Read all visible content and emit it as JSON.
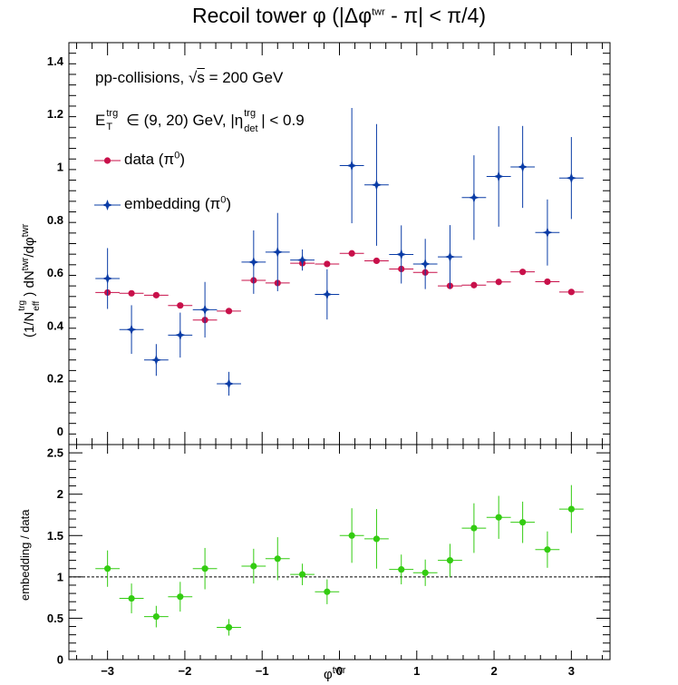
{
  "title": {
    "main": "Recoil tower φ (|Δφ",
    "sup": "twr",
    "tail": " - π| < π/4)"
  },
  "annotations": {
    "collisions": "pp-collisions, ",
    "sqrt_sym": "√",
    "sqrt_s": "s",
    "energy": " = 200 GeV",
    "et_E": "E",
    "et_sup": "trg",
    "et_sub": "T",
    "et_range": " ∈ (9, 20) GeV, |η",
    "eta_sup": "trg",
    "eta_sub": "det",
    "eta_cut": "| < 0.9"
  },
  "legend": {
    "data_label": "data (π",
    "data_sup": "0",
    "data_close": ")",
    "emb_label": "embedding (π",
    "emb_sup": "0",
    "emb_close": ")"
  },
  "axis_labels": {
    "y_top_a": "(1/N",
    "y_top_sup1": "trg",
    "y_top_sub1": "eff",
    "y_top_b": ") dN",
    "y_top_sup2": "twr",
    "y_top_c": "/dφ",
    "y_top_sup3": "twr",
    "y_bottom": "embedding / data",
    "x_main": "φ",
    "x_sup": "twr"
  },
  "chart_data": [
    {
      "type": "scatter",
      "panel": "top",
      "title": "Recoil tower φ (|Δφ^twr - π| < π/4)",
      "xlabel": "φ^twr",
      "ylabel": "(1/N^trg_eff) dN^twr/dφ^twr",
      "xlim": [
        -3.5,
        3.5
      ],
      "ylim": [
        -0.05,
        1.47
      ],
      "x_ticks": [
        -3,
        -2,
        -1,
        0,
        1,
        2,
        3
      ],
      "y_ticks": [
        0,
        0.2,
        0.4,
        0.6,
        0.8,
        1,
        1.2,
        1.4
      ],
      "y_tick_labels": [
        "0",
        "0.2",
        "0.4",
        "0.6",
        "0.8",
        "1",
        "1.2",
        "1.4"
      ],
      "bin_half_width": 0.157,
      "x": [
        -3.0,
        -2.69,
        -2.37,
        -2.06,
        -1.74,
        -1.43,
        -1.11,
        -0.8,
        -0.48,
        -0.16,
        0.16,
        0.48,
        0.8,
        1.11,
        1.43,
        1.74,
        2.06,
        2.37,
        2.69,
        3.0
      ],
      "series": [
        {
          "name": "data (π0)",
          "color": "#c8104a",
          "marker": "circle",
          "values": [
            0.525,
            0.522,
            0.515,
            0.476,
            0.421,
            0.455,
            0.571,
            0.561,
            0.636,
            0.633,
            0.673,
            0.645,
            0.614,
            0.601,
            0.55,
            0.553,
            0.565,
            0.603,
            0.566,
            0.527
          ],
          "errors": [
            0.008,
            0.008,
            0.008,
            0.008,
            0.008,
            0.008,
            0.008,
            0.008,
            0.008,
            0.008,
            0.008,
            0.008,
            0.008,
            0.008,
            0.008,
            0.008,
            0.008,
            0.008,
            0.008,
            0.008
          ]
        },
        {
          "name": "embedding (π0)",
          "color": "#0a3ca6",
          "marker": "star",
          "values": [
            0.578,
            0.385,
            0.27,
            0.364,
            0.46,
            0.18,
            0.64,
            0.678,
            0.648,
            0.518,
            1.005,
            0.932,
            0.669,
            0.633,
            0.66,
            0.884,
            0.964,
            1.0,
            0.752,
            0.958
          ],
          "errors": [
            0.115,
            0.092,
            0.06,
            0.085,
            0.105,
            0.045,
            0.12,
            0.148,
            0.04,
            0.095,
            0.218,
            0.23,
            0.11,
            0.095,
            0.12,
            0.16,
            0.19,
            0.155,
            0.125,
            0.155
          ]
        }
      ],
      "legend_placement": "top-left"
    },
    {
      "type": "scatter",
      "panel": "bottom",
      "xlabel": "φ^twr",
      "ylabel": "embedding / data",
      "xlim": [
        -3.5,
        3.5
      ],
      "ylim": [
        0,
        2.6
      ],
      "x_ticks": [
        -3,
        -2,
        -1,
        0,
        1,
        2,
        3
      ],
      "y_ticks": [
        0,
        0.5,
        1,
        1.5,
        2,
        2.5
      ],
      "y_tick_labels": [
        "0",
        "0.5",
        "1",
        "1.5",
        "2",
        "2.5"
      ],
      "reference_line": 1,
      "bin_half_width": 0.157,
      "x": [
        -3.0,
        -2.69,
        -2.37,
        -2.06,
        -1.74,
        -1.43,
        -1.11,
        -0.8,
        -0.48,
        -0.16,
        0.16,
        0.48,
        0.8,
        1.11,
        1.43,
        1.74,
        2.06,
        2.37,
        2.69,
        3.0
      ],
      "series": [
        {
          "name": "embedding / data",
          "color": "#33cc11",
          "marker": "circle",
          "values": [
            1.1,
            0.74,
            0.52,
            0.76,
            1.1,
            0.39,
            1.13,
            1.22,
            1.03,
            0.82,
            1.5,
            1.46,
            1.09,
            1.05,
            1.2,
            1.59,
            1.72,
            1.66,
            1.33,
            1.82
          ],
          "errors": [
            0.22,
            0.18,
            0.13,
            0.18,
            0.25,
            0.1,
            0.21,
            0.26,
            0.13,
            0.15,
            0.33,
            0.36,
            0.18,
            0.16,
            0.2,
            0.3,
            0.26,
            0.25,
            0.22,
            0.29
          ]
        }
      ]
    }
  ]
}
